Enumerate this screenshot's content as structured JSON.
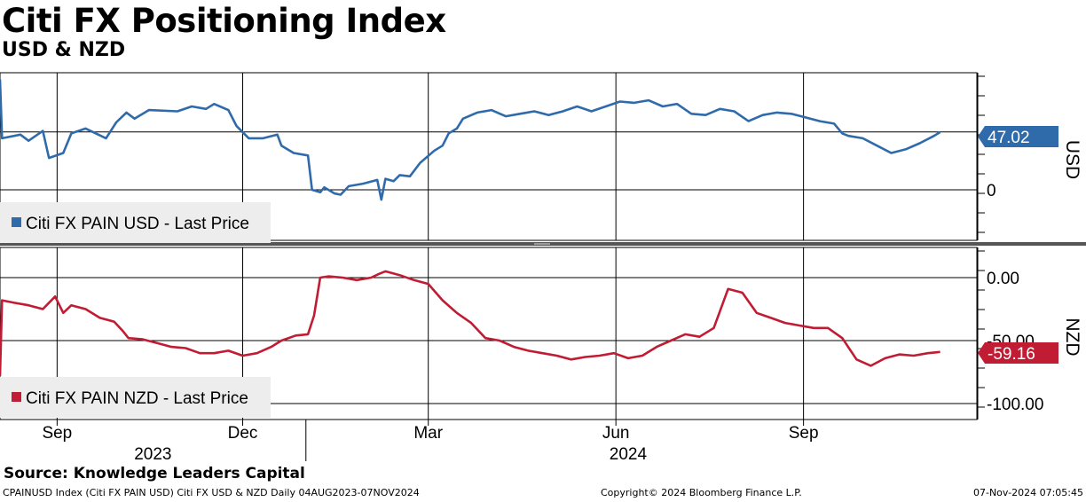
{
  "header": {
    "title": "Citi FX Positioning Index",
    "subtitle": "USD & NZD"
  },
  "source": "Source: Knowledge Leaders Capital",
  "footer": {
    "left": "CPAINUSD Index (Citi FX PAIN USD) Citi FX USD & NZD  Daily 04AUG2023-07NOV2024",
    "center": "Copyright© 2024 Bloomberg Finance L.P.",
    "right": "07-Nov-2024 07:05:45"
  },
  "colors": {
    "usd": "#2f6bab",
    "nzd": "#c01c33",
    "grid": "#000000"
  },
  "chart_data": [
    {
      "type": "line",
      "panel": "upper",
      "axis_label": "USD",
      "y_ticks": [
        "0"
      ],
      "ylim": [
        -20,
        100
      ],
      "legend": "Citi FX PAIN USD - Last Price",
      "last_value": "47.02",
      "grid": true,
      "series": [
        {
          "name": "Citi FX PAIN USD - Last Price",
          "points": [
            [
              "2023-08-04",
              90
            ],
            [
              "2023-08-05",
              42
            ],
            [
              "2023-08-14",
              45
            ],
            [
              "2023-08-18",
              40
            ],
            [
              "2023-08-25",
              48
            ],
            [
              "2023-08-28",
              26
            ],
            [
              "2023-09-04",
              30
            ],
            [
              "2023-09-08",
              46
            ],
            [
              "2023-09-15",
              50
            ],
            [
              "2023-09-25",
              42
            ],
            [
              "2023-09-30",
              55
            ],
            [
              "2023-10-05",
              63
            ],
            [
              "2023-10-09",
              58
            ],
            [
              "2023-10-16",
              65
            ],
            [
              "2023-10-30",
              64
            ],
            [
              "2023-11-06",
              68
            ],
            [
              "2023-11-13",
              66
            ],
            [
              "2023-11-17",
              70
            ],
            [
              "2023-11-24",
              65
            ],
            [
              "2023-11-28",
              52
            ],
            [
              "2023-12-04",
              42
            ],
            [
              "2023-12-11",
              42
            ],
            [
              "2023-12-18",
              45
            ],
            [
              "2023-12-20",
              36
            ],
            [
              "2023-12-26",
              30
            ],
            [
              "2024-01-02",
              28
            ],
            [
              "2024-01-04",
              0
            ],
            [
              "2024-01-08",
              -2
            ],
            [
              "2024-01-10",
              2
            ],
            [
              "2024-01-15",
              -3
            ],
            [
              "2024-01-18",
              -4
            ],
            [
              "2024-01-22",
              3
            ],
            [
              "2024-01-29",
              5
            ],
            [
              "2024-02-05",
              8
            ],
            [
              "2024-02-07",
              -8
            ],
            [
              "2024-02-09",
              9
            ],
            [
              "2024-02-13",
              7
            ],
            [
              "2024-02-16",
              12
            ],
            [
              "2024-02-21",
              11
            ],
            [
              "2024-02-26",
              22
            ],
            [
              "2024-03-04",
              32
            ],
            [
              "2024-03-08",
              36
            ],
            [
              "2024-03-11",
              46
            ],
            [
              "2024-03-15",
              50
            ],
            [
              "2024-03-18",
              58
            ],
            [
              "2024-03-25",
              63
            ],
            [
              "2024-04-01",
              65
            ],
            [
              "2024-04-08",
              60
            ],
            [
              "2024-04-15",
              62
            ],
            [
              "2024-04-22",
              64
            ],
            [
              "2024-04-29",
              61
            ],
            [
              "2024-05-06",
              64
            ],
            [
              "2024-05-13",
              68
            ],
            [
              "2024-05-20",
              64
            ],
            [
              "2024-05-27",
              68
            ],
            [
              "2024-06-03",
              72
            ],
            [
              "2024-06-10",
              71
            ],
            [
              "2024-06-17",
              73
            ],
            [
              "2024-06-24",
              68
            ],
            [
              "2024-07-01",
              70
            ],
            [
              "2024-07-08",
              62
            ],
            [
              "2024-07-15",
              61
            ],
            [
              "2024-07-22",
              66
            ],
            [
              "2024-07-29",
              64
            ],
            [
              "2024-08-05",
              56
            ],
            [
              "2024-08-12",
              61
            ],
            [
              "2024-08-19",
              63
            ],
            [
              "2024-08-26",
              62
            ],
            [
              "2024-09-02",
              59
            ],
            [
              "2024-09-09",
              56
            ],
            [
              "2024-09-16",
              54
            ],
            [
              "2024-09-20",
              46
            ],
            [
              "2024-09-23",
              44
            ],
            [
              "2024-09-30",
              42
            ],
            [
              "2024-10-07",
              36
            ],
            [
              "2024-10-14",
              30
            ],
            [
              "2024-10-21",
              33
            ],
            [
              "2024-10-28",
              38
            ],
            [
              "2024-11-04",
              44
            ],
            [
              "2024-11-07",
              47
            ]
          ]
        }
      ]
    },
    {
      "type": "line",
      "panel": "lower",
      "axis_label": "NZD",
      "y_ticks": [
        "0.00",
        "-50.00",
        "-100.00"
      ],
      "ylim": [
        -100,
        10
      ],
      "legend": "Citi FX PAIN NZD - Last Price",
      "last_value": "-59.16",
      "grid": true,
      "series": [
        {
          "name": "Citi FX PAIN NZD - Last Price",
          "points": [
            [
              "2023-08-04",
              -78
            ],
            [
              "2023-08-05",
              -18
            ],
            [
              "2023-08-11",
              -20
            ],
            [
              "2023-08-18",
              -22
            ],
            [
              "2023-08-25",
              -25
            ],
            [
              "2023-08-31",
              -15
            ],
            [
              "2023-09-04",
              -28
            ],
            [
              "2023-09-08",
              -22
            ],
            [
              "2023-09-15",
              -25
            ],
            [
              "2023-09-22",
              -32
            ],
            [
              "2023-09-29",
              -35
            ],
            [
              "2023-10-03",
              -42
            ],
            [
              "2023-10-06",
              -48
            ],
            [
              "2023-10-13",
              -49
            ],
            [
              "2023-10-20",
              -52
            ],
            [
              "2023-10-27",
              -55
            ],
            [
              "2023-11-03",
              -56
            ],
            [
              "2023-11-10",
              -60
            ],
            [
              "2023-11-17",
              -60
            ],
            [
              "2023-11-24",
              -58
            ],
            [
              "2023-12-01",
              -62
            ],
            [
              "2023-12-08",
              -60
            ],
            [
              "2023-12-15",
              -55
            ],
            [
              "2023-12-20",
              -50
            ],
            [
              "2023-12-27",
              -46
            ],
            [
              "2024-01-02",
              -45
            ],
            [
              "2024-01-05",
              -30
            ],
            [
              "2024-01-08",
              0
            ],
            [
              "2024-01-12",
              1
            ],
            [
              "2024-01-19",
              0
            ],
            [
              "2024-01-26",
              -2
            ],
            [
              "2024-02-02",
              0
            ],
            [
              "2024-02-06",
              3
            ],
            [
              "2024-02-09",
              5
            ],
            [
              "2024-02-16",
              2
            ],
            [
              "2024-02-23",
              -2
            ],
            [
              "2024-03-01",
              -5
            ],
            [
              "2024-03-08",
              -18
            ],
            [
              "2024-03-15",
              -28
            ],
            [
              "2024-03-22",
              -36
            ],
            [
              "2024-03-29",
              -48
            ],
            [
              "2024-04-05",
              -50
            ],
            [
              "2024-04-12",
              -55
            ],
            [
              "2024-04-19",
              -58
            ],
            [
              "2024-04-26",
              -60
            ],
            [
              "2024-05-03",
              -62
            ],
            [
              "2024-05-10",
              -65
            ],
            [
              "2024-05-17",
              -63
            ],
            [
              "2024-05-24",
              -62
            ],
            [
              "2024-05-31",
              -60
            ],
            [
              "2024-06-07",
              -64
            ],
            [
              "2024-06-14",
              -62
            ],
            [
              "2024-06-21",
              -55
            ],
            [
              "2024-06-28",
              -50
            ],
            [
              "2024-07-05",
              -45
            ],
            [
              "2024-07-12",
              -47
            ],
            [
              "2024-07-19",
              -40
            ],
            [
              "2024-07-26",
              -9
            ],
            [
              "2024-08-02",
              -12
            ],
            [
              "2024-08-09",
              -28
            ],
            [
              "2024-08-16",
              -32
            ],
            [
              "2024-08-23",
              -36
            ],
            [
              "2024-08-30",
              -38
            ],
            [
              "2024-09-06",
              -40
            ],
            [
              "2024-09-13",
              -40
            ],
            [
              "2024-09-20",
              -48
            ],
            [
              "2024-09-27",
              -65
            ],
            [
              "2024-10-04",
              -70
            ],
            [
              "2024-10-11",
              -64
            ],
            [
              "2024-10-18",
              -61
            ],
            [
              "2024-10-25",
              -62
            ],
            [
              "2024-11-01",
              -60
            ],
            [
              "2024-11-07",
              -59
            ]
          ]
        }
      ]
    }
  ],
  "x_axis": {
    "months": [
      {
        "label": "Sep",
        "date": "2023-09-01"
      },
      {
        "label": "Dec",
        "date": "2023-12-01"
      },
      {
        "label": "Mar",
        "date": "2024-03-01"
      },
      {
        "label": "Jun",
        "date": "2024-06-01"
      },
      {
        "label": "Sep",
        "date": "2024-09-01"
      }
    ],
    "years": [
      {
        "label": "2023",
        "date": "2023-10-18"
      },
      {
        "label": "2024",
        "date": "2024-06-07"
      }
    ],
    "range": [
      "2023-08-04",
      "2024-11-25"
    ]
  }
}
